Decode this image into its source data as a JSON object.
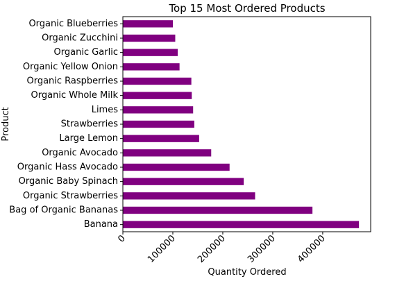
{
  "chart_data": {
    "type": "bar",
    "orientation": "horizontal",
    "title": "Top 15 Most Ordered Products",
    "xlabel": "Quantity Ordered",
    "ylabel": "Product",
    "categories": [
      "Banana",
      "Bag of Organic Bananas",
      "Organic Strawberries",
      "Organic Baby Spinach",
      "Organic Hass Avocado",
      "Organic Avocado",
      "Large Lemon",
      "Strawberries",
      "Limes",
      "Organic Whole Milk",
      "Organic Raspberries",
      "Organic Yellow Onion",
      "Organic Garlic",
      "Organic Zucchini",
      "Organic Blueberries"
    ],
    "values": [
      472565,
      379450,
      264683,
      241921,
      213584,
      176815,
      152657,
      142951,
      140627,
      137905,
      137057,
      113426,
      109778,
      104823,
      100060
    ],
    "xlim": [
      0,
      496000
    ],
    "xticks": [
      0,
      100000,
      200000,
      300000,
      400000
    ],
    "xtick_labels": [
      "0",
      "100000",
      "200000",
      "300000",
      "400000"
    ],
    "xtick_rotation": 45,
    "grid": false,
    "legend": "none",
    "bar_color": "#800080"
  }
}
